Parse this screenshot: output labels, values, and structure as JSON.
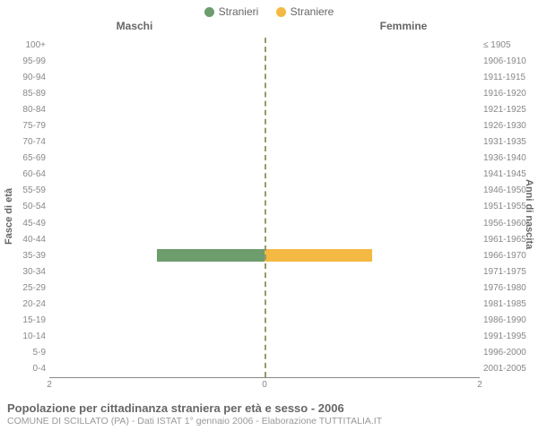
{
  "legend": {
    "male": {
      "label": "Stranieri",
      "color": "#6d9c6d"
    },
    "female": {
      "label": "Straniere",
      "color": "#f4b942"
    }
  },
  "section_labels": {
    "male": "Maschi",
    "female": "Femmine"
  },
  "axes": {
    "left_title": "Fasce di età",
    "right_title": "Anni di nascita",
    "x_max": 2,
    "x_ticks": [
      2,
      0,
      2
    ],
    "zero_line_color": "#99996a"
  },
  "rows": [
    {
      "age": "100+",
      "birth": "≤ 1905",
      "m": 0,
      "f": 0
    },
    {
      "age": "95-99",
      "birth": "1906-1910",
      "m": 0,
      "f": 0
    },
    {
      "age": "90-94",
      "birth": "1911-1915",
      "m": 0,
      "f": 0
    },
    {
      "age": "85-89",
      "birth": "1916-1920",
      "m": 0,
      "f": 0
    },
    {
      "age": "80-84",
      "birth": "1921-1925",
      "m": 0,
      "f": 0
    },
    {
      "age": "75-79",
      "birth": "1926-1930",
      "m": 0,
      "f": 0
    },
    {
      "age": "70-74",
      "birth": "1931-1935",
      "m": 0,
      "f": 0
    },
    {
      "age": "65-69",
      "birth": "1936-1940",
      "m": 0,
      "f": 0
    },
    {
      "age": "60-64",
      "birth": "1941-1945",
      "m": 0,
      "f": 0
    },
    {
      "age": "55-59",
      "birth": "1946-1950",
      "m": 0,
      "f": 0
    },
    {
      "age": "50-54",
      "birth": "1951-1955",
      "m": 0,
      "f": 0
    },
    {
      "age": "45-49",
      "birth": "1956-1960",
      "m": 0,
      "f": 0
    },
    {
      "age": "40-44",
      "birth": "1961-1965",
      "m": 0,
      "f": 0
    },
    {
      "age": "35-39",
      "birth": "1966-1970",
      "m": 1,
      "f": 1
    },
    {
      "age": "30-34",
      "birth": "1971-1975",
      "m": 0,
      "f": 0
    },
    {
      "age": "25-29",
      "birth": "1976-1980",
      "m": 0,
      "f": 0
    },
    {
      "age": "20-24",
      "birth": "1981-1985",
      "m": 0,
      "f": 0
    },
    {
      "age": "15-19",
      "birth": "1986-1990",
      "m": 0,
      "f": 0
    },
    {
      "age": "10-14",
      "birth": "1991-1995",
      "m": 0,
      "f": 0
    },
    {
      "age": "5-9",
      "birth": "1996-2000",
      "m": 0,
      "f": 0
    },
    {
      "age": "0-4",
      "birth": "2001-2005",
      "m": 0,
      "f": 0
    }
  ],
  "caption": {
    "title": "Popolazione per cittadinanza straniera per età e sesso - 2006",
    "subtitle": "COMUNE DI SCILLATO (PA) - Dati ISTAT 1° gennaio 2006 - Elaborazione TUTTITALIA.IT"
  },
  "style": {
    "background": "#ffffff",
    "tick_color": "#888888",
    "label_color": "#666666",
    "sub_color": "#999999",
    "tick_fontsize": 10,
    "label_fontsize": 12,
    "title_fontsize": 13
  }
}
